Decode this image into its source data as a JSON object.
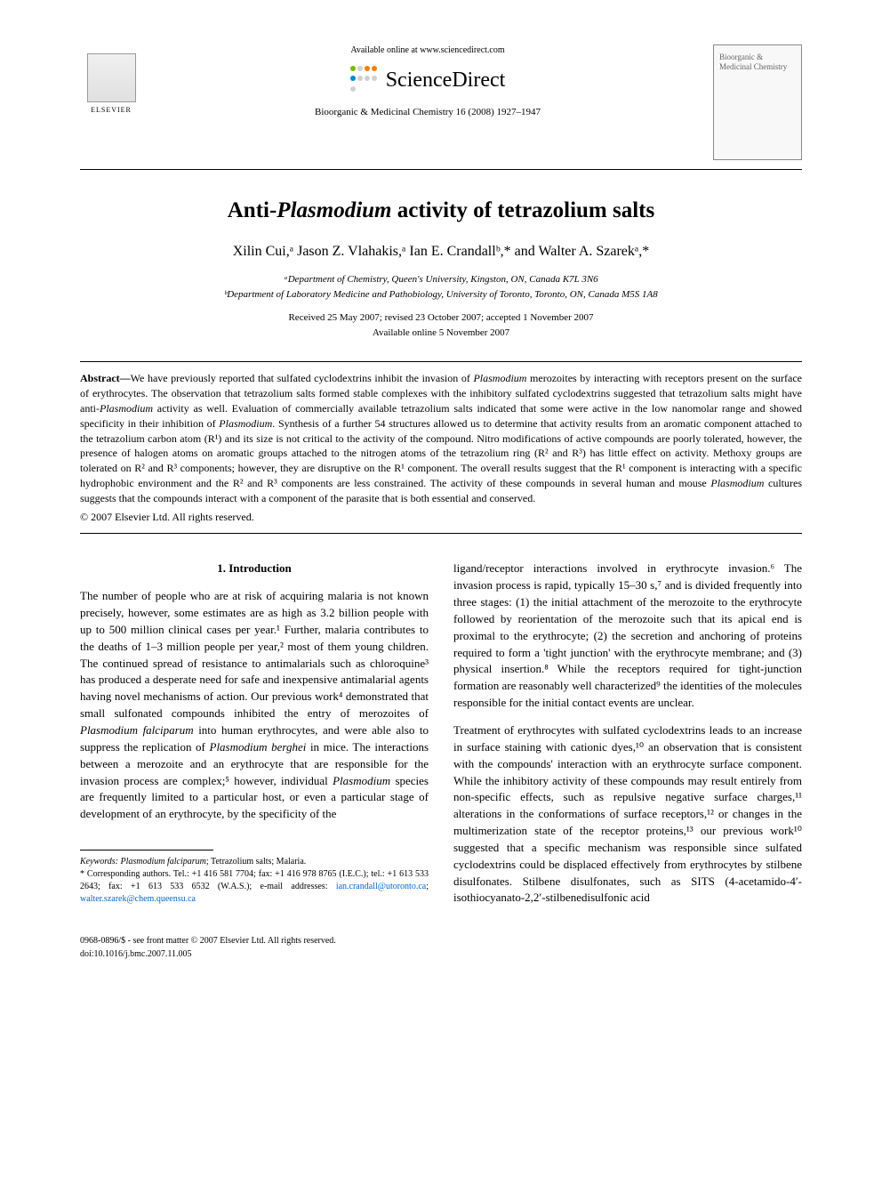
{
  "header": {
    "elsevier": "ELSEVIER",
    "availableOnline": "Available online at www.sciencedirect.com",
    "scienceDirect": "ScienceDirect",
    "sdDotColors": [
      "#76b900",
      "#d0d0d0",
      "#f57c00",
      "#f57c00",
      "#0288d1",
      "#d0d0d0",
      "#d0d0d0",
      "#d0d0d0",
      "#d0d0d0"
    ],
    "journalRef": "Bioorganic & Medicinal Chemistry 16 (2008) 1927–1947",
    "journalCover": "Bioorganic & Medicinal Chemistry"
  },
  "article": {
    "titlePrefix": "Anti-",
    "titleItalic": "Plasmodium",
    "titleSuffix": " activity of tetrazolium salts",
    "authors": "Xilin Cui,ᵃ Jason Z. Vlahakis,ᵃ Ian E. Crandallᵇ,* and Walter A. Szarekᵃ,*",
    "affilA": "ᵃDepartment of Chemistry, Queen's University, Kingston, ON, Canada K7L 3N6",
    "affilB": "ᵇDepartment of Laboratory Medicine and Pathobiology, University of Toronto, Toronto, ON, Canada M5S 1A8",
    "received": "Received 25 May 2007; revised 23 October 2007; accepted 1 November 2007",
    "availableDate": "Available online 5 November 2007"
  },
  "abstract": {
    "label": "Abstract—",
    "text1": "We have previously reported that sulfated cyclodextrins inhibit the invasion of ",
    "it1": "Plasmodium",
    "text2": " merozoites by interacting with receptors present on the surface of erythrocytes. The observation that tetrazolium salts formed stable complexes with the inhibitory sulfated cyclodextrins suggested that tetrazolium salts might have anti-",
    "it2": "Plasmodium",
    "text3": " activity as well. Evaluation of commercially available tetrazolium salts indicated that some were active in the low nanomolar range and showed specificity in their inhibition of ",
    "it3": "Plasmodium",
    "text4": ". Synthesis of a further 54 structures allowed us to determine that activity results from an aromatic component attached to the tetrazolium carbon atom (R¹) and its size is not critical to the activity of the compound. Nitro modifications of active compounds are poorly tolerated, however, the presence of halogen atoms on aromatic groups attached to the nitrogen atoms of the tetrazolium ring (R² and R³) has little effect on activity. Methoxy groups are tolerated on R² and R³ components; however, they are disruptive on the R¹ component. The overall results suggest that the R¹ component is interacting with a specific hydrophobic environment and the R² and R³ components are less constrained. The activity of these compounds in several human and mouse ",
    "it4": "Plasmodium",
    "text5": " cultures suggests that the compounds interact with a component of the parasite that is both essential and conserved.",
    "copyright": "© 2007 Elsevier Ltd. All rights reserved."
  },
  "intro": {
    "heading": "1. Introduction",
    "leftP1a": "The number of people who are at risk of acquiring malaria is not known precisely, however, some estimates are as high as 3.2 billion people with up to 500 million clinical cases per year.¹ Further, malaria contributes to the deaths of 1–3 million people per year,² most of them young children. The continued spread of resistance to antimalarials such as chloroquine³ has produced a desperate need for safe and inexpensive antimalarial agents having novel mechanisms of action. Our previous work⁴ demonstrated that small sulfonated compounds inhibited the entry of merozoites of ",
    "leftIt1": "Plasmodium falciparum",
    "leftP1b": " into human erythrocytes, and were able also to suppress the replication of ",
    "leftIt2": "Plasmodium berghei",
    "leftP1c": " in mice. The interactions between a merozoite and an erythrocyte that are responsible for the invasion process are complex;⁵ however, individual ",
    "leftIt3": "Plasmodium",
    "leftP1d": " species are frequently limited to a particular host, or even a particular stage of development of an erythrocyte, by the specificity of the",
    "rightP1": "ligand/receptor interactions involved in erythrocyte invasion.⁶ The invasion process is rapid, typically 15–30 s,⁷ and is divided frequently into three stages: (1) the initial attachment of the merozoite to the erythrocyte followed by reorientation of the merozoite such that its apical end is proximal to the erythrocyte; (2) the secretion and anchoring of proteins required to form a 'tight junction' with the erythrocyte membrane; and (3) physical insertion.⁸ While the receptors required for tight-junction formation are reasonably well characterized⁹ the identities of the molecules responsible for the initial contact events are unclear.",
    "rightP2": "Treatment of erythrocytes with sulfated cyclodextrins leads to an increase in surface staining with cationic dyes,¹⁰ an observation that is consistent with the compounds' interaction with an erythrocyte surface component. While the inhibitory activity of these compounds may result entirely from non-specific effects, such as repulsive negative surface charges,¹¹ alterations in the conformations of surface receptors,¹² or changes in the multimerization state of the receptor proteins,¹³ our previous work¹⁰ suggested that a specific mechanism was responsible since sulfated cyclodextrins could be displaced effectively from erythrocytes by stilbene disulfonates. Stilbene disulfonates, such as SITS (4-acetamido-4′-isothiocyanato-2,2′-stilbenedisulfonic acid"
  },
  "footnotes": {
    "keywordsLabel": "Keywords: ",
    "keywordsItalic": "Plasmodium falciparum",
    "keywordsRest": "; Tetrazolium salts; Malaria.",
    "corresponding": "* Corresponding authors. Tel.: +1 416 581 7704; fax: +1 416 978 8765 (I.E.C.); tel.: +1 613 533 2643; fax: +1 613 533 6532 (W.A.S.); e-mail addresses: ",
    "email1": "ian.crandall@utoronto.ca",
    "emailSep": "; ",
    "email2": "walter.szarek@chem.queensu.ca"
  },
  "doi": {
    "line1": "0968-0896/$ - see front matter © 2007 Elsevier Ltd. All rights reserved.",
    "line2": "doi:10.1016/j.bmc.2007.11.005"
  }
}
